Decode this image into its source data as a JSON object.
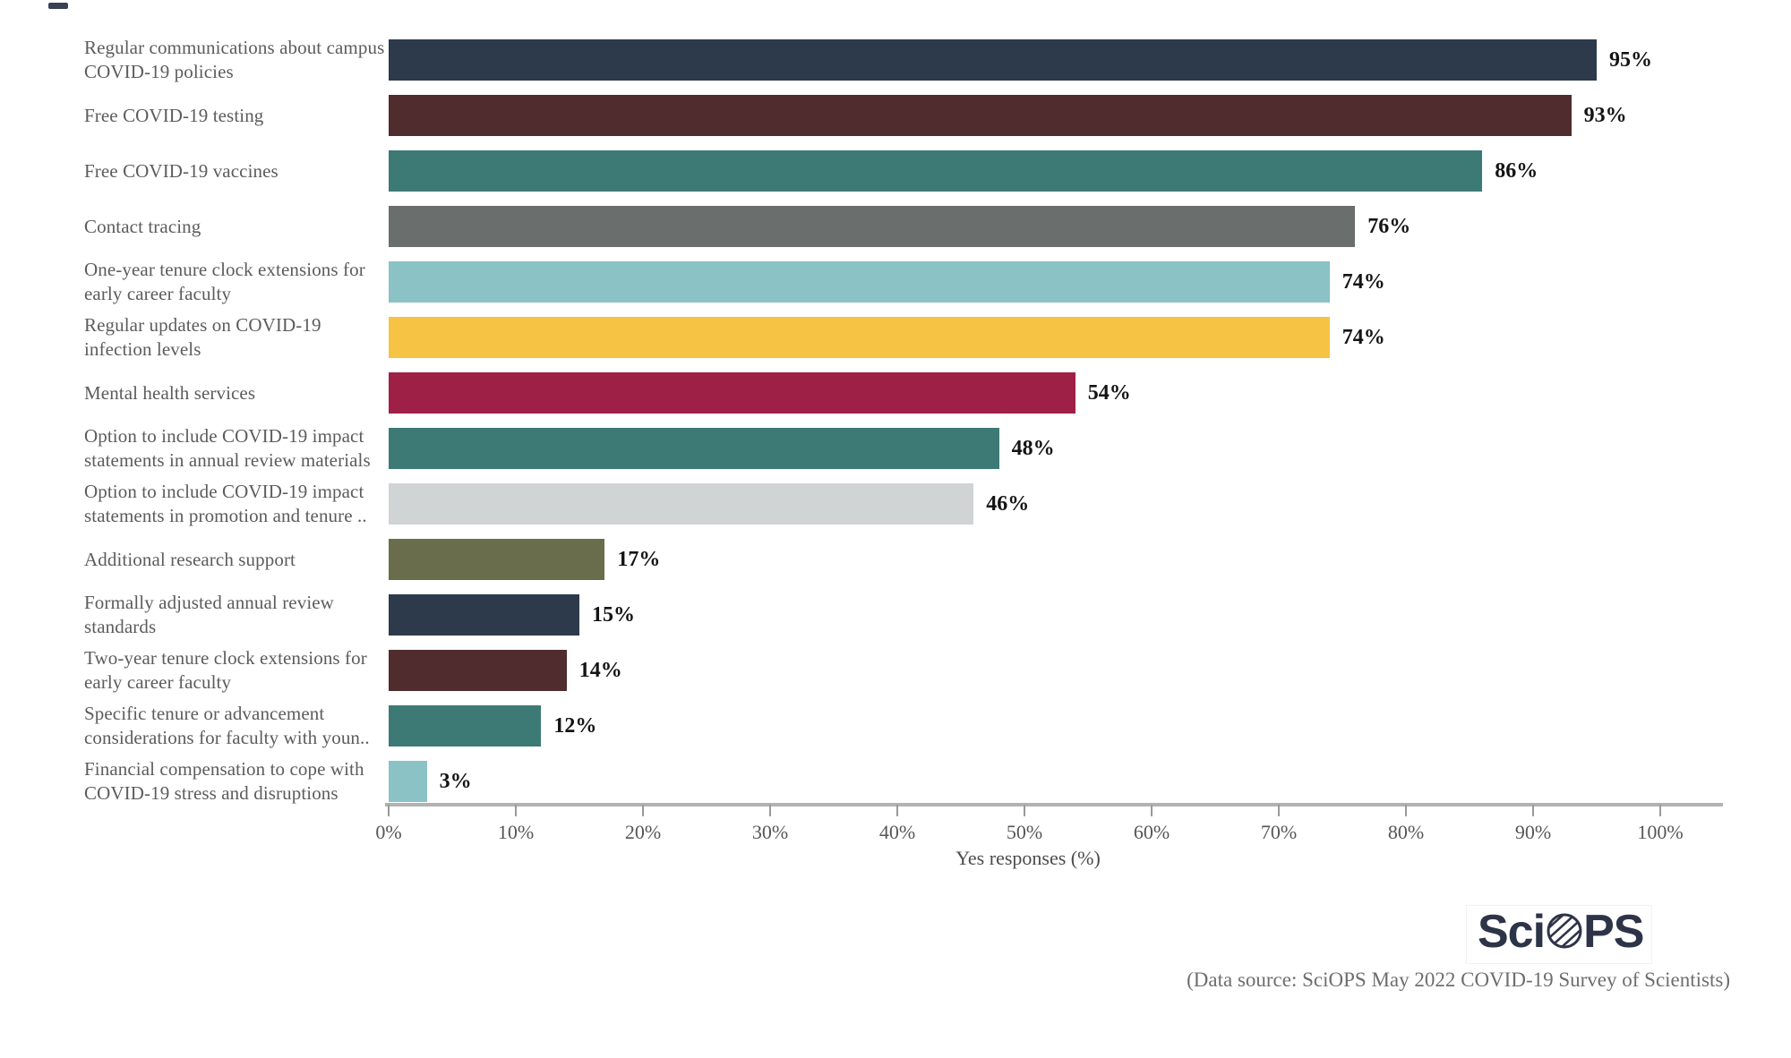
{
  "chart_data": {
    "type": "bar",
    "orientation": "horizontal",
    "title": "",
    "xlabel": "Yes responses (%)",
    "xlim": [
      0,
      105
    ],
    "grid": false,
    "legend": "none",
    "x_ticks": [
      "0%",
      "10%",
      "20%",
      "30%",
      "40%",
      "50%",
      "60%",
      "70%",
      "80%",
      "90%",
      "100%"
    ],
    "x_tick_values": [
      0,
      10,
      20,
      30,
      40,
      50,
      60,
      70,
      80,
      90,
      100
    ],
    "categories": [
      "Regular communications about campus COVID-19 policies",
      "Free COVID-19 testing",
      "Free COVID-19 vaccines",
      "Contact tracing",
      "One-year tenure clock extensions for early career faculty",
      "Regular updates on COVID-19 infection levels",
      "Mental health services",
      "Option to include COVID-19 impact statements in annual review materials",
      "Option to include COVID-19 impact statements in promotion and tenure ..",
      "Additional research support",
      "Formally adjusted annual review standards",
      "Two-year tenure clock extensions for early career faculty",
      "Specific tenure or advancement considerations for faculty with youn..",
      "Financial compensation to cope with COVID-19 stress and disruptions"
    ],
    "values": [
      95,
      93,
      86,
      76,
      74,
      74,
      54,
      48,
      46,
      17,
      15,
      14,
      12,
      3
    ],
    "value_labels": [
      "95%",
      "93%",
      "86%",
      "76%",
      "74%",
      "74%",
      "54%",
      "48%",
      "46%",
      "17%",
      "15%",
      "14%",
      "12%",
      "3%"
    ],
    "colors": [
      "#2d3a4b",
      "#502c2f",
      "#3d7a76",
      "#6a6e6d",
      "#8ac2c6",
      "#f6c344",
      "#9f2047",
      "#3d7a76",
      "#d1d4d4",
      "#6a6d4b",
      "#2d3a4b",
      "#502c2f",
      "#3d7a76",
      "#8ac2c6"
    ]
  },
  "footer": {
    "logo": {
      "prefix": "Sci",
      "suffix": "PS",
      "icon": "hatched-globe-icon",
      "color": "#2e3448"
    },
    "datasource": "(Data source: SciOPS May 2022 COVID-19 Survey of Scientists)"
  }
}
